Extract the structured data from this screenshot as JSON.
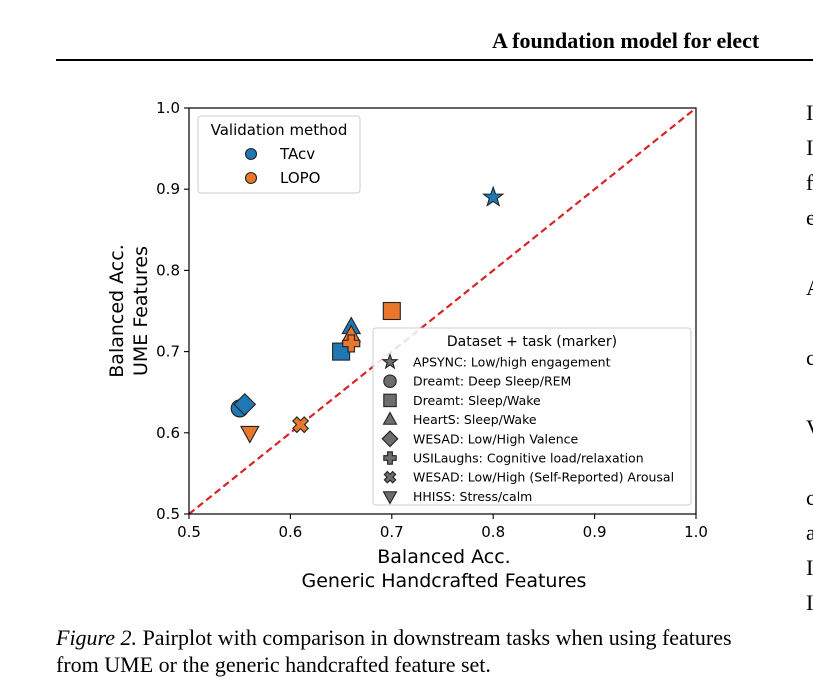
{
  "header": {
    "title": "A foundation model for elect"
  },
  "right_column_fragments": [
    "I",
    "I",
    "f",
    "e",
    "",
    "A",
    "",
    "c",
    "",
    "V",
    "",
    "c",
    "a",
    "I",
    "I"
  ],
  "caption": {
    "label": "Figure 2.",
    "text": " Pairplot with comparison in downstream tasks when using features from UME or the generic handcrafted feature set."
  },
  "colors": {
    "tacv": "#1f77b4",
    "lopo": "#e8762b",
    "diagonal": "#d62728"
  },
  "chart_data": {
    "type": "scatter",
    "xlabel": "Balanced Acc.",
    "xlabel2": "Generic Handcrafted Features",
    "ylabel": "Balanced Acc.",
    "ylabel2": "UME Features",
    "xlim": [
      0.5,
      1.0
    ],
    "ylim": [
      0.5,
      1.0
    ],
    "xticks": [
      0.5,
      0.6,
      0.7,
      0.8,
      0.9,
      1.0
    ],
    "yticks": [
      0.5,
      0.6,
      0.7,
      0.8,
      0.9,
      1.0
    ],
    "tick_labels_x": [
      "0.5",
      "0.6",
      "0.7",
      "0.8",
      "0.9",
      "1.0"
    ],
    "tick_labels_y": [
      "0.5",
      "0.6",
      "0.7",
      "0.8",
      "0.9",
      "1.0"
    ],
    "diagonal": true,
    "legend_color": {
      "title": "Validation method",
      "placement": "top-left",
      "entries": [
        {
          "label": "TAcv",
          "key": "tacv"
        },
        {
          "label": "LOPO",
          "key": "lopo"
        }
      ]
    },
    "legend_marker": {
      "title": "Dataset + task (marker)",
      "placement": "bottom-right",
      "entries": [
        {
          "label": "APSYNC: Low/high engagement",
          "marker": "star"
        },
        {
          "label": "Dreamt: Deep Sleep/REM",
          "marker": "circle"
        },
        {
          "label": "Dreamt: Sleep/Wake",
          "marker": "square"
        },
        {
          "label": "HeartS: Sleep/Wake",
          "marker": "triangle-up"
        },
        {
          "label": "WESAD: Low/High Valence",
          "marker": "diamond"
        },
        {
          "label": "USILaughs: Cognitive load/relaxation",
          "marker": "plus"
        },
        {
          "label": "WESAD: Low/High (Self-Reported) Arousal",
          "marker": "x"
        },
        {
          "label": "HHISS: Stress/calm",
          "marker": "triangle-down"
        }
      ]
    },
    "points": [
      {
        "marker": "star",
        "method": "tacv",
        "x": 0.8,
        "y": 0.89
      },
      {
        "marker": "circle",
        "method": "tacv",
        "x": 0.55,
        "y": 0.63
      },
      {
        "marker": "square",
        "method": "tacv",
        "x": 0.65,
        "y": 0.7
      },
      {
        "marker": "square",
        "method": "lopo",
        "x": 0.7,
        "y": 0.75
      },
      {
        "marker": "triangle-up",
        "method": "tacv",
        "x": 0.66,
        "y": 0.73
      },
      {
        "marker": "triangle-up",
        "method": "lopo",
        "x": 0.66,
        "y": 0.72
      },
      {
        "marker": "diamond",
        "method": "tacv",
        "x": 0.555,
        "y": 0.635
      },
      {
        "marker": "plus",
        "method": "lopo",
        "x": 0.66,
        "y": 0.71
      },
      {
        "marker": "x",
        "method": "lopo",
        "x": 0.61,
        "y": 0.61
      },
      {
        "marker": "triangle-down",
        "method": "lopo",
        "x": 0.56,
        "y": 0.6
      }
    ]
  }
}
